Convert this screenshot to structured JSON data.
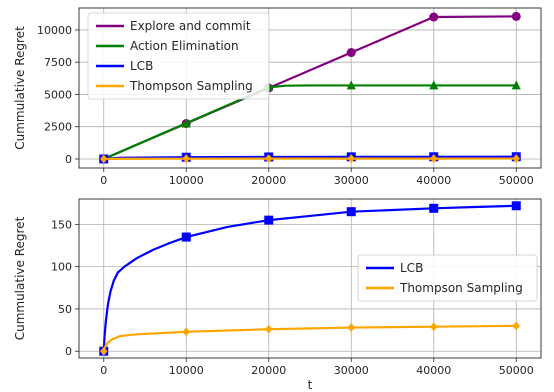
{
  "chart_data": [
    {
      "type": "line",
      "xlabel": "",
      "ylabel": "Cummulative Regret",
      "xlim": [
        -3000,
        53000
      ],
      "ylim": [
        -700,
        11700
      ],
      "xticks": [
        0,
        10000,
        20000,
        30000,
        40000,
        50000
      ],
      "yticks": [
        0,
        2500,
        5000,
        7500,
        10000
      ],
      "grid": true,
      "legend_position": "top-left",
      "series": [
        {
          "name": "Explore and commit",
          "color": "#800080",
          "marker": "circle",
          "x": [
            0,
            10000,
            20000,
            30000,
            40000,
            50000
          ],
          "y": [
            0,
            2750,
            5500,
            8250,
            11000,
            11050
          ],
          "line": [
            [
              0,
              0
            ],
            [
              40000,
              11000
            ],
            [
              50000,
              11050
            ]
          ]
        },
        {
          "name": "Action Elimination",
          "color": "#008000",
          "marker": "triangle",
          "x": [
            0,
            10000,
            20000,
            30000,
            40000,
            50000
          ],
          "y": [
            0,
            2750,
            5600,
            5700,
            5700,
            5700
          ],
          "line": [
            [
              0,
              0
            ],
            [
              20000,
              5550
            ],
            [
              22000,
              5680
            ],
            [
              25000,
              5700
            ],
            [
              50000,
              5700
            ]
          ]
        },
        {
          "name": "LCB",
          "color": "#0000ff",
          "marker": "square",
          "x": [
            0,
            10000,
            20000,
            30000,
            40000,
            50000
          ],
          "y": [
            0,
            135,
            155,
            165,
            169,
            172
          ],
          "line": [
            [
              0,
              0
            ],
            [
              2000,
              95
            ],
            [
              10000,
              135
            ],
            [
              20000,
              155
            ],
            [
              30000,
              165
            ],
            [
              40000,
              169
            ],
            [
              50000,
              172
            ]
          ]
        },
        {
          "name": "Thompson Sampling",
          "color": "#ffa500",
          "marker": "diamond",
          "x": [
            0,
            10000,
            20000,
            30000,
            40000,
            50000
          ],
          "y": [
            0,
            23,
            26,
            28,
            29,
            30
          ],
          "line": [
            [
              0,
              0
            ],
            [
              2000,
              17
            ],
            [
              10000,
              23
            ],
            [
              20000,
              26
            ],
            [
              30000,
              28
            ],
            [
              40000,
              29
            ],
            [
              50000,
              30
            ]
          ]
        }
      ]
    },
    {
      "type": "line",
      "xlabel": "t",
      "ylabel": "Cummulative Regret",
      "xlim": [
        -3000,
        53000
      ],
      "ylim": [
        -8,
        180
      ],
      "xticks": [
        0,
        10000,
        20000,
        30000,
        40000,
        50000
      ],
      "yticks": [
        0,
        50,
        100,
        150
      ],
      "grid": true,
      "legend_position": "center-right",
      "series": [
        {
          "name": "LCB",
          "color": "#0000ff",
          "marker": "square",
          "x": [
            0,
            10000,
            20000,
            30000,
            40000,
            50000
          ],
          "y": [
            0,
            135,
            155,
            165,
            169,
            172
          ],
          "line": [
            [
              0,
              0
            ],
            [
              100,
              18
            ],
            [
              250,
              35
            ],
            [
              500,
              55
            ],
            [
              800,
              70
            ],
            [
              1200,
              83
            ],
            [
              1700,
              93
            ],
            [
              2500,
              100
            ],
            [
              4000,
              110
            ],
            [
              6000,
              120
            ],
            [
              8000,
              128
            ],
            [
              10000,
              135
            ],
            [
              15000,
              147
            ],
            [
              20000,
              155
            ],
            [
              25000,
              160
            ],
            [
              30000,
              165
            ],
            [
              35000,
              167
            ],
            [
              40000,
              169
            ],
            [
              45000,
              170.5
            ],
            [
              50000,
              172
            ]
          ]
        },
        {
          "name": "Thompson Sampling",
          "color": "#ffa500",
          "marker": "diamond",
          "x": [
            0,
            10000,
            20000,
            30000,
            40000,
            50000
          ],
          "y": [
            0,
            23,
            26,
            28,
            29,
            30
          ],
          "line": [
            [
              0,
              0
            ],
            [
              200,
              6
            ],
            [
              500,
              10
            ],
            [
              1000,
              14
            ],
            [
              2000,
              18
            ],
            [
              4000,
              20
            ],
            [
              7000,
              21.5
            ],
            [
              10000,
              23
            ],
            [
              20000,
              26
            ],
            [
              30000,
              28
            ],
            [
              40000,
              29
            ],
            [
              50000,
              30
            ]
          ]
        }
      ]
    }
  ]
}
